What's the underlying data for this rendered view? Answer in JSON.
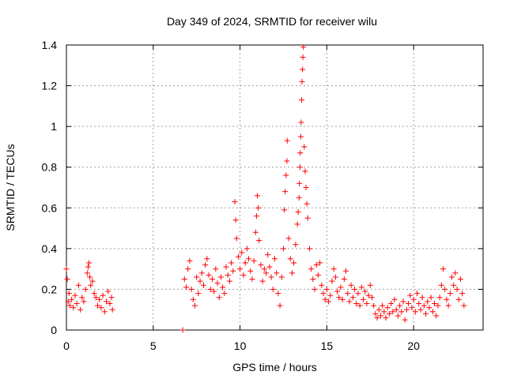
{
  "chart_data": {
    "type": "scatter",
    "title": "Day 349 of 2024, SRMTID for receiver wilu",
    "xlabel": "GPS time / hours",
    "ylabel": "SRMTID / TECUs",
    "xlim": [
      0,
      24
    ],
    "ylim": [
      0,
      1.4
    ],
    "xticks": [
      0,
      5,
      10,
      15,
      20
    ],
    "yticks": [
      0,
      0.2,
      0.4,
      0.6,
      0.8,
      1,
      1.2,
      1.4
    ],
    "xtick_labels": [
      "0",
      "5",
      "10",
      "15",
      "20"
    ],
    "ytick_labels": [
      "0",
      "0.2",
      "0.4",
      "0.6",
      "0.8",
      "1",
      "1.2",
      "1.4"
    ],
    "grid": true,
    "marker": "+",
    "color": "#ff0000",
    "series": [
      {
        "name": "SRMTID",
        "points": [
          [
            0.0,
            0.3
          ],
          [
            0.05,
            0.25
          ],
          [
            0.1,
            0.14
          ],
          [
            0.15,
            0.18
          ],
          [
            0.2,
            0.12
          ],
          [
            0.3,
            0.15
          ],
          [
            0.4,
            0.11
          ],
          [
            0.5,
            0.17
          ],
          [
            0.6,
            0.13
          ],
          [
            0.7,
            0.22
          ],
          [
            0.8,
            0.1
          ],
          [
            0.9,
            0.16
          ],
          [
            1.0,
            0.14
          ],
          [
            1.1,
            0.2
          ],
          [
            1.2,
            0.28
          ],
          [
            1.25,
            0.31
          ],
          [
            1.3,
            0.33
          ],
          [
            1.35,
            0.26
          ],
          [
            1.4,
            0.22
          ],
          [
            1.5,
            0.24
          ],
          [
            1.6,
            0.18
          ],
          [
            1.7,
            0.16
          ],
          [
            1.8,
            0.12
          ],
          [
            1.9,
            0.15
          ],
          [
            2.0,
            0.11
          ],
          [
            2.1,
            0.17
          ],
          [
            2.2,
            0.09
          ],
          [
            2.3,
            0.14
          ],
          [
            2.4,
            0.19
          ],
          [
            2.5,
            0.13
          ],
          [
            2.6,
            0.16
          ],
          [
            2.65,
            0.1
          ],
          [
            6.7,
            0.0
          ],
          [
            6.8,
            0.25
          ],
          [
            6.9,
            0.21
          ],
          [
            7.0,
            0.3
          ],
          [
            7.1,
            0.34
          ],
          [
            7.2,
            0.2
          ],
          [
            7.3,
            0.15
          ],
          [
            7.4,
            0.12
          ],
          [
            7.5,
            0.26
          ],
          [
            7.6,
            0.18
          ],
          [
            7.7,
            0.24
          ],
          [
            7.8,
            0.28
          ],
          [
            7.9,
            0.22
          ],
          [
            8.0,
            0.32
          ],
          [
            8.1,
            0.35
          ],
          [
            8.2,
            0.27
          ],
          [
            8.3,
            0.2
          ],
          [
            8.4,
            0.25
          ],
          [
            8.5,
            0.19
          ],
          [
            8.6,
            0.3
          ],
          [
            8.7,
            0.23
          ],
          [
            8.8,
            0.16
          ],
          [
            8.9,
            0.26
          ],
          [
            9.0,
            0.21
          ],
          [
            9.1,
            0.18
          ],
          [
            9.2,
            0.31
          ],
          [
            9.3,
            0.27
          ],
          [
            9.4,
            0.24
          ],
          [
            9.5,
            0.33
          ],
          [
            9.6,
            0.29
          ],
          [
            9.7,
            0.63
          ],
          [
            9.75,
            0.54
          ],
          [
            9.8,
            0.45
          ],
          [
            9.9,
            0.36
          ],
          [
            10.0,
            0.3
          ],
          [
            10.1,
            0.38
          ],
          [
            10.2,
            0.27
          ],
          [
            10.3,
            0.33
          ],
          [
            10.4,
            0.4
          ],
          [
            10.5,
            0.35
          ],
          [
            10.6,
            0.29
          ],
          [
            10.7,
            0.25
          ],
          [
            10.8,
            0.34
          ],
          [
            10.9,
            0.48
          ],
          [
            10.95,
            0.56
          ],
          [
            11.0,
            0.66
          ],
          [
            11.05,
            0.6
          ],
          [
            11.1,
            0.44
          ],
          [
            11.2,
            0.32
          ],
          [
            11.3,
            0.24
          ],
          [
            11.4,
            0.3
          ],
          [
            11.5,
            0.28
          ],
          [
            11.6,
            0.37
          ],
          [
            11.7,
            0.31
          ],
          [
            11.8,
            0.26
          ],
          [
            11.9,
            0.2
          ],
          [
            12.0,
            0.35
          ],
          [
            12.1,
            0.28
          ],
          [
            12.2,
            0.18
          ],
          [
            12.3,
            0.12
          ],
          [
            12.4,
            0.26
          ],
          [
            12.5,
            0.4
          ],
          [
            12.55,
            0.59
          ],
          [
            12.6,
            0.68
          ],
          [
            12.65,
            0.76
          ],
          [
            12.7,
            0.83
          ],
          [
            12.72,
            0.93
          ],
          [
            12.8,
            0.45
          ],
          [
            12.9,
            0.35
          ],
          [
            13.0,
            0.28
          ],
          [
            13.1,
            0.33
          ],
          [
            13.2,
            0.42
          ],
          [
            13.3,
            0.52
          ],
          [
            13.35,
            0.58
          ],
          [
            13.4,
            0.65
          ],
          [
            13.42,
            0.72
          ],
          [
            13.45,
            0.8
          ],
          [
            13.47,
            0.87
          ],
          [
            13.5,
            0.95
          ],
          [
            13.52,
            1.02
          ],
          [
            13.55,
            1.13
          ],
          [
            13.57,
            1.22
          ],
          [
            13.6,
            1.28
          ],
          [
            13.62,
            1.34
          ],
          [
            13.65,
            1.39
          ],
          [
            13.7,
            0.9
          ],
          [
            13.75,
            0.78
          ],
          [
            13.8,
            0.7
          ],
          [
            13.85,
            0.62
          ],
          [
            13.9,
            0.55
          ],
          [
            14.0,
            0.4
          ],
          [
            14.1,
            0.3
          ],
          [
            14.2,
            0.25
          ],
          [
            14.3,
            0.2
          ],
          [
            14.4,
            0.32
          ],
          [
            14.5,
            0.27
          ],
          [
            14.6,
            0.33
          ],
          [
            14.7,
            0.22
          ],
          [
            14.8,
            0.18
          ],
          [
            14.9,
            0.15
          ],
          [
            15.0,
            0.2
          ],
          [
            15.1,
            0.14
          ],
          [
            15.2,
            0.17
          ],
          [
            15.3,
            0.24
          ],
          [
            15.4,
            0.3
          ],
          [
            15.5,
            0.26
          ],
          [
            15.6,
            0.19
          ],
          [
            15.7,
            0.16
          ],
          [
            15.8,
            0.21
          ],
          [
            15.9,
            0.15
          ],
          [
            16.0,
            0.25
          ],
          [
            16.1,
            0.29
          ],
          [
            16.2,
            0.18
          ],
          [
            16.3,
            0.14
          ],
          [
            16.4,
            0.22
          ],
          [
            16.5,
            0.16
          ],
          [
            16.6,
            0.2
          ],
          [
            16.7,
            0.13
          ],
          [
            16.8,
            0.18
          ],
          [
            16.9,
            0.12
          ],
          [
            17.0,
            0.21
          ],
          [
            17.1,
            0.15
          ],
          [
            17.2,
            0.19
          ],
          [
            17.3,
            0.13
          ],
          [
            17.4,
            0.17
          ],
          [
            17.5,
            0.22
          ],
          [
            17.6,
            0.16
          ],
          [
            17.7,
            0.12
          ],
          [
            17.8,
            0.08
          ],
          [
            17.9,
            0.06
          ],
          [
            18.0,
            0.1
          ],
          [
            18.1,
            0.07
          ],
          [
            18.2,
            0.12
          ],
          [
            18.3,
            0.09
          ],
          [
            18.4,
            0.06
          ],
          [
            18.5,
            0.11
          ],
          [
            18.6,
            0.08
          ],
          [
            18.7,
            0.13
          ],
          [
            18.8,
            0.09
          ],
          [
            18.9,
            0.15
          ],
          [
            19.0,
            0.1
          ],
          [
            19.1,
            0.07
          ],
          [
            19.2,
            0.12
          ],
          [
            19.3,
            0.09
          ],
          [
            19.4,
            0.14
          ],
          [
            19.5,
            0.05
          ],
          [
            19.6,
            0.1
          ],
          [
            19.7,
            0.13
          ],
          [
            19.8,
            0.17
          ],
          [
            19.9,
            0.11
          ],
          [
            20.0,
            0.15
          ],
          [
            20.1,
            0.09
          ],
          [
            20.2,
            0.18
          ],
          [
            20.3,
            0.13
          ],
          [
            20.4,
            0.1
          ],
          [
            20.5,
            0.16
          ],
          [
            20.6,
            0.12
          ],
          [
            20.7,
            0.08
          ],
          [
            20.8,
            0.14
          ],
          [
            20.9,
            0.11
          ],
          [
            21.0,
            0.16
          ],
          [
            21.1,
            0.09
          ],
          [
            21.2,
            0.13
          ],
          [
            21.3,
            0.07
          ],
          [
            21.4,
            0.12
          ],
          [
            21.5,
            0.16
          ],
          [
            21.6,
            0.22
          ],
          [
            21.7,
            0.3
          ],
          [
            21.8,
            0.2
          ],
          [
            21.9,
            0.15
          ],
          [
            22.0,
            0.12
          ],
          [
            22.1,
            0.18
          ],
          [
            22.2,
            0.26
          ],
          [
            22.3,
            0.22
          ],
          [
            22.4,
            0.28
          ],
          [
            22.5,
            0.2
          ],
          [
            22.6,
            0.15
          ],
          [
            22.7,
            0.25
          ],
          [
            22.8,
            0.18
          ],
          [
            22.9,
            0.12
          ]
        ]
      }
    ]
  }
}
